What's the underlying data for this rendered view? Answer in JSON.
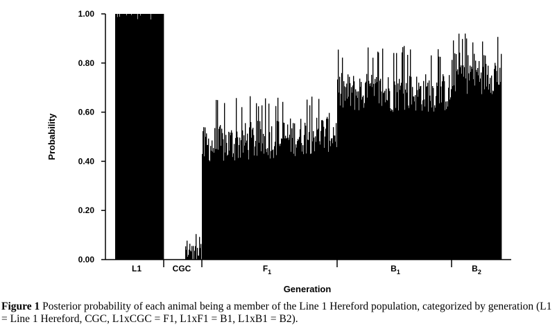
{
  "chart_data": {
    "type": "bar",
    "ylabel": "Probability",
    "xlabel": "Generation",
    "ylim": [
      0,
      1
    ],
    "yticks": [
      "0.00",
      "0.20",
      "0.40",
      "0.60",
      "0.80",
      "1.00"
    ],
    "groups": [
      {
        "label": "L1",
        "base": "L1",
        "sub": "",
        "n": 70,
        "mean": 0.995,
        "min": 0.96,
        "max": 1.0
      },
      {
        "label": "CGC",
        "base": "CGC",
        "sub": "",
        "n": 55,
        "mean": 0.0,
        "min": 0.0,
        "max": 0.14
      },
      {
        "label": "F1",
        "base": "F",
        "sub": "1",
        "n": 195,
        "mean": 0.46,
        "min": 0.4,
        "max": 0.67
      },
      {
        "label": "B1",
        "base": "B",
        "sub": "1",
        "n": 165,
        "mean": 0.68,
        "min": 0.6,
        "max": 0.87
      },
      {
        "label": "B2",
        "base": "B",
        "sub": "2",
        "n": 72,
        "mean": 0.76,
        "min": 0.64,
        "max": 0.93
      }
    ]
  },
  "caption": {
    "label": "Figure 1",
    "text": "Posterior probability of each animal being a member of the Line 1 Hereford population, categorized by generation (L1 = Line 1 Hereford, CGC, L1xCGC = F1, L1xF1 = B1, L1xB1 = B2)."
  }
}
